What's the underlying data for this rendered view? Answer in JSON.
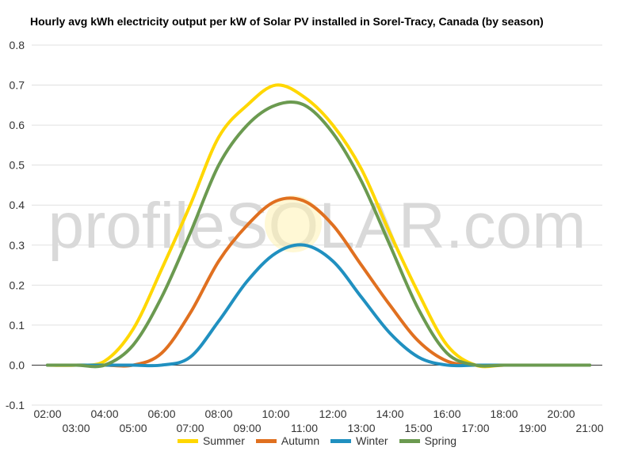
{
  "title": "Hourly avg kWh electricity output per kW of Solar PV installed in Sorel-Tracy, Canada (by season)",
  "watermark": "profileSOLAR.com",
  "chart_data": {
    "type": "line",
    "title": "Hourly avg kWh electricity output per kW of Solar PV installed in Sorel-Tracy, Canada (by season)",
    "x": [
      "02:00",
      "03:00",
      "04:00",
      "05:00",
      "06:00",
      "07:00",
      "08:00",
      "09:00",
      "10:00",
      "11:00",
      "12:00",
      "13:00",
      "14:00",
      "15:00",
      "16:00",
      "17:00",
      "18:00",
      "19:00",
      "20:00",
      "21:00"
    ],
    "ylim": [
      -0.1,
      0.8
    ],
    "yticks": [
      -0.1,
      0.0,
      0.1,
      0.2,
      0.3,
      0.4,
      0.5,
      0.6,
      0.7,
      0.8
    ],
    "ytick_labels": [
      "-0.1",
      "0.0",
      "0.1",
      "0.2",
      "0.3",
      "0.4",
      "0.5",
      "0.6",
      "0.7",
      "0.8"
    ],
    "grid": true,
    "legend_position": "bottom",
    "series": [
      {
        "name": "Summer",
        "color": "#ffd700",
        "values": [
          0,
          0,
          0.01,
          0.09,
          0.24,
          0.4,
          0.57,
          0.65,
          0.7,
          0.67,
          0.6,
          0.49,
          0.33,
          0.18,
          0.05,
          0.0,
          0,
          0,
          0,
          0
        ]
      },
      {
        "name": "Autumn",
        "color": "#e07020",
        "values": [
          0,
          0,
          0,
          0,
          0.03,
          0.13,
          0.26,
          0.35,
          0.41,
          0.41,
          0.35,
          0.25,
          0.15,
          0.06,
          0.01,
          0,
          0,
          0,
          0,
          0
        ]
      },
      {
        "name": "Winter",
        "color": "#2090c0",
        "values": [
          0,
          0,
          0,
          0,
          0,
          0.02,
          0.11,
          0.21,
          0.28,
          0.3,
          0.26,
          0.17,
          0.08,
          0.02,
          0,
          0,
          0,
          0,
          0,
          0
        ]
      },
      {
        "name": "Spring",
        "color": "#6b9a50",
        "values": [
          0,
          0,
          0,
          0.05,
          0.17,
          0.33,
          0.5,
          0.6,
          0.65,
          0.65,
          0.58,
          0.46,
          0.3,
          0.14,
          0.03,
          0,
          0,
          0,
          0,
          0
        ]
      }
    ]
  }
}
